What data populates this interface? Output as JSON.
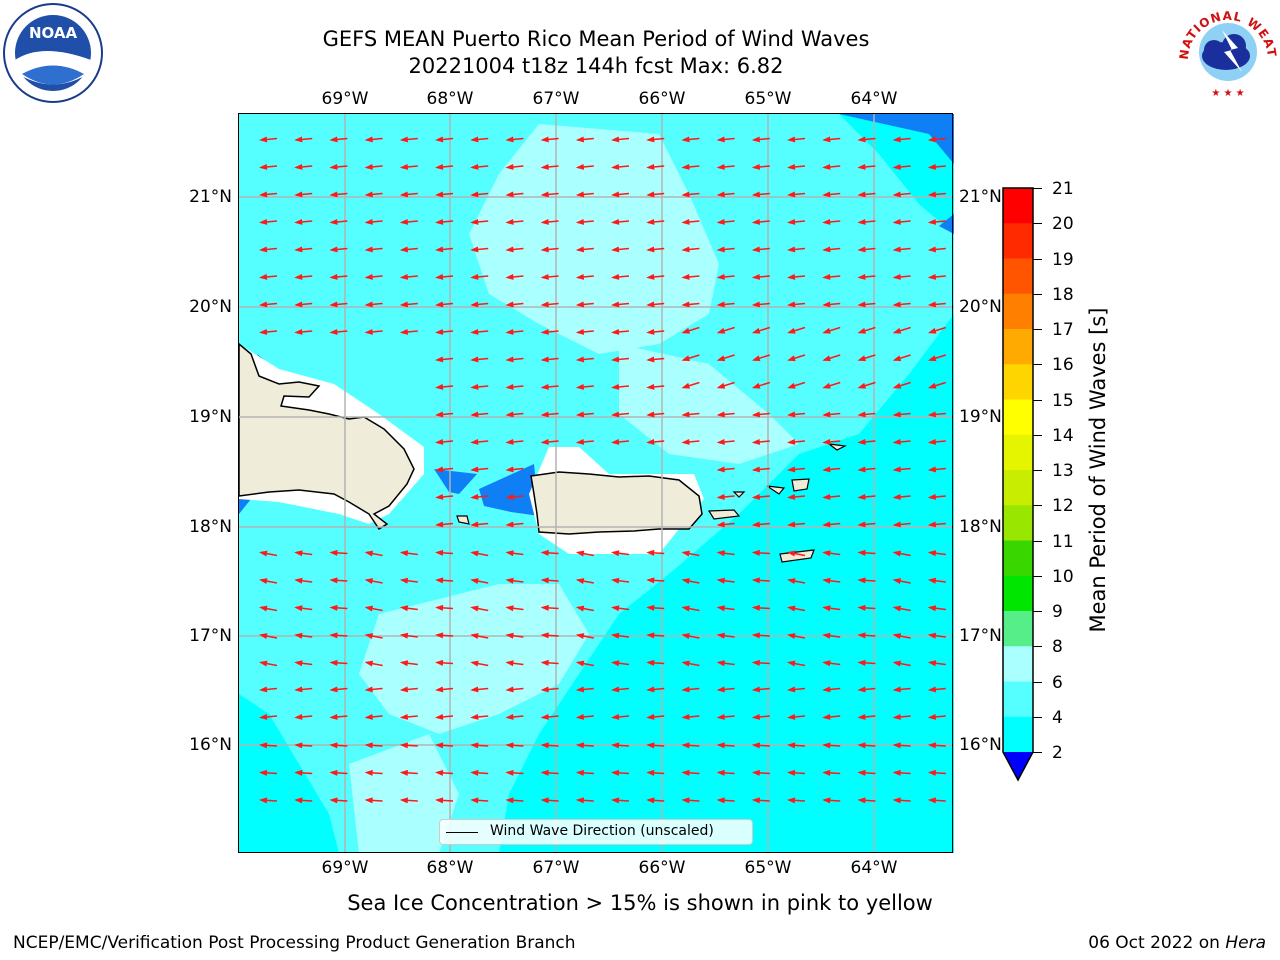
{
  "title_line1": "GEFS MEAN Puerto Rico Mean Period of Wind Waves",
  "title_line2": "20221004 t18z 144h fcst   Max: 6.82",
  "x_ticks": [
    "69°W",
    "68°W",
    "67°W",
    "66°W",
    "65°W",
    "64°W"
  ],
  "y_ticks": [
    "21°N",
    "20°N",
    "19°N",
    "18°N",
    "17°N",
    "16°N"
  ],
  "legend_label": "Wind Wave Direction (unscaled)",
  "colorbar": {
    "label": "Mean Period of Wind Waves [s]",
    "ticks": [
      "21",
      "20",
      "19",
      "18",
      "17",
      "16",
      "15",
      "14",
      "13",
      "12",
      "11",
      "10",
      "9",
      "8",
      "6",
      "4",
      "2"
    ],
    "colors": [
      "#ff0000",
      "#ff2a00",
      "#ff5500",
      "#ff8000",
      "#ffaa00",
      "#ffd500",
      "#ffff00",
      "#e5f500",
      "#c8ed00",
      "#99e600",
      "#39d600",
      "#00e600",
      "#55ee88",
      "#aaffff",
      "#55ffff",
      "#00ffff",
      "#007fff",
      "#0000ff"
    ]
  },
  "logos": {
    "noaa": "NOAA",
    "nws_text": "NATIONAL WEATHER SERVICE"
  },
  "map_colors": {
    "sea_low": "#00ffff",
    "sea_mid": "#55ffff",
    "sea_light": "#aaffff",
    "sea_short": "#0f7ff5",
    "land": "#efecda",
    "arrow": "#ff1a1a"
  },
  "sea_ice_note": "Sea Ice Concentration > 15% is shown in pink to yellow",
  "footer_left": "NCEP/EMC/Verification Post Processing Product Generation Branch",
  "footer_date": "06 Oct 2022 on",
  "footer_host": "Hera"
}
